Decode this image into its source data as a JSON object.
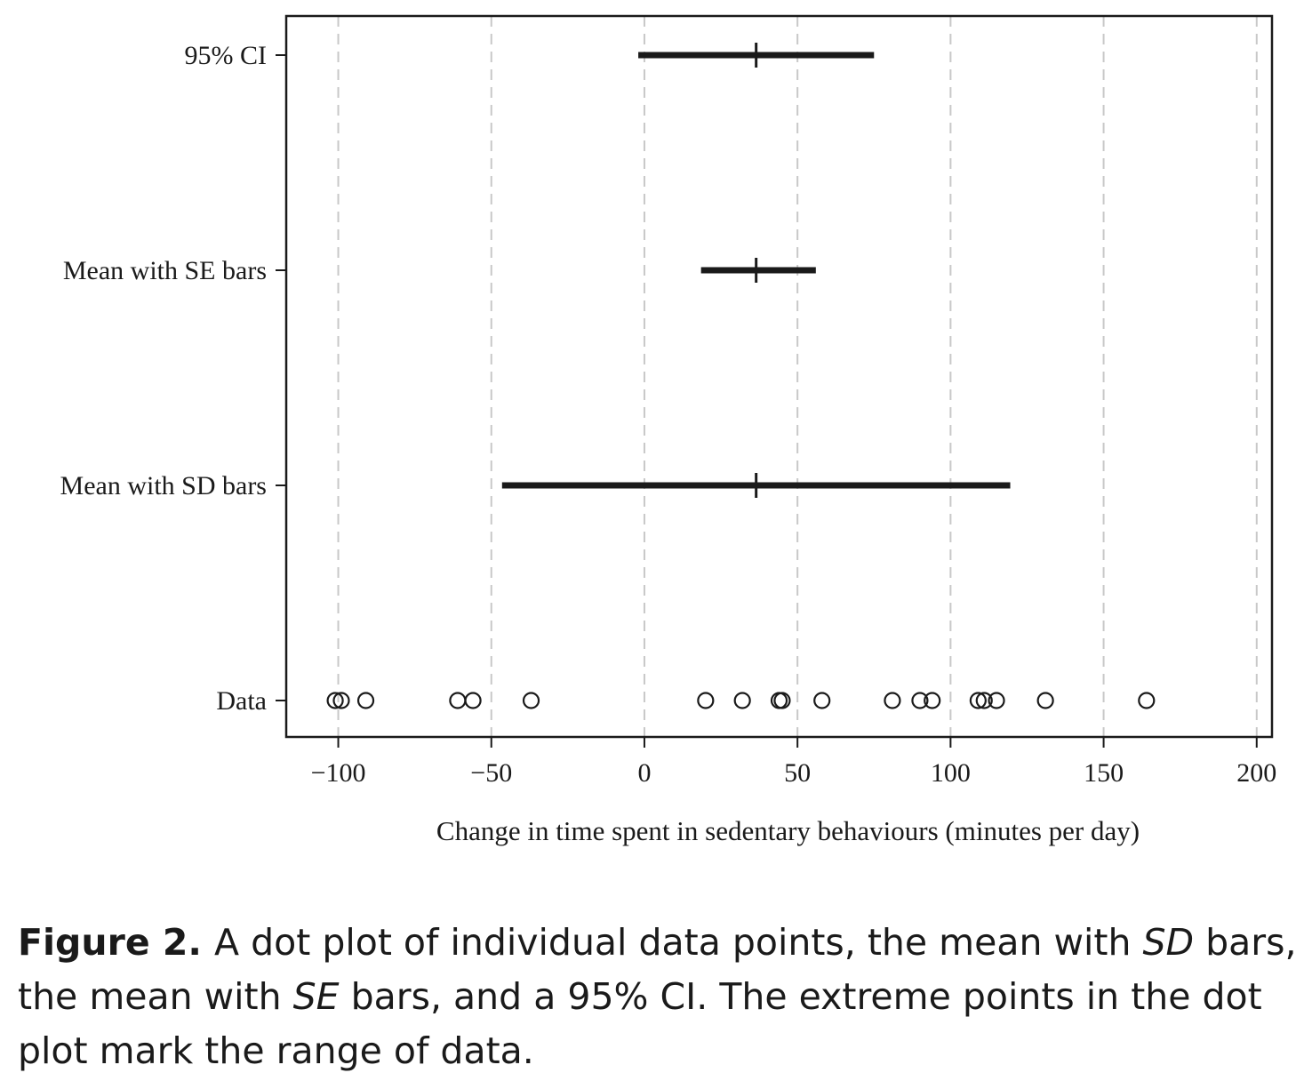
{
  "chart_data": {
    "type": "scatter",
    "xlabel": "Change in time spent in sedentary behaviours (minutes per day)",
    "xlim": [
      -117,
      205
    ],
    "xticks": [
      -100,
      -50,
      0,
      50,
      100,
      150,
      200
    ],
    "xtick_labels": [
      "−100",
      "−50",
      "0",
      "50",
      "100",
      "150",
      "200"
    ],
    "grid": "vertical dashed",
    "categories": [
      "95% CI",
      "Mean with SE bars",
      "Mean with SD bars",
      "Data"
    ],
    "intervals": [
      {
        "category": "95% CI",
        "mean": 36.5,
        "low": -2,
        "high": 75
      },
      {
        "category": "Mean with SE bars",
        "mean": 36.5,
        "low": 18.5,
        "high": 56
      },
      {
        "category": "Mean with SD bars",
        "mean": 36.5,
        "low": -46.5,
        "high": 119.5
      }
    ],
    "data_points": [
      -101,
      -99,
      -91,
      -61,
      -56,
      -37,
      20,
      32,
      44,
      45,
      58,
      81,
      90,
      94,
      109,
      111,
      115,
      131,
      164
    ]
  },
  "caption": {
    "label": "Figure 2.",
    "parts": [
      {
        "text": "A dot plot of individual data points, the mean with ",
        "italic": false
      },
      {
        "text": "SD",
        "italic": true
      },
      {
        "text": " bars, the mean with ",
        "italic": false
      },
      {
        "text": "SE",
        "italic": true
      },
      {
        "text": " bars, and a 95% CI. The extreme points in the dot plot mark the range of data.",
        "italic": false
      }
    ]
  }
}
